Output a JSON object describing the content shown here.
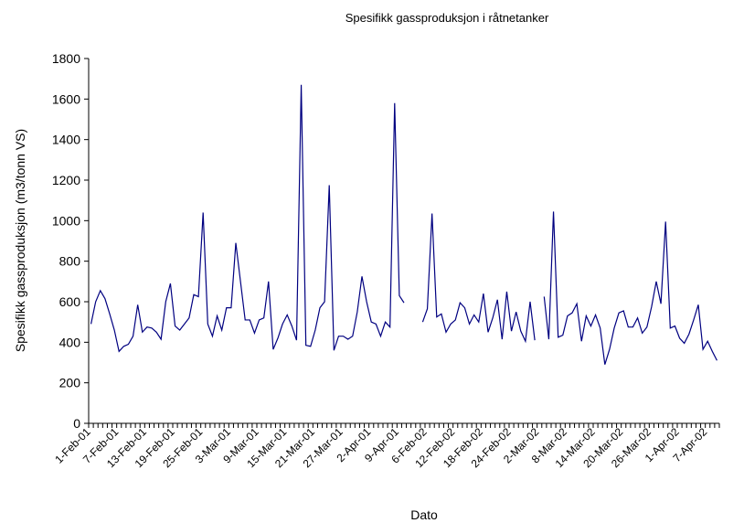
{
  "chart_data": {
    "type": "line",
    "title": "Spesifikk gassproduksjon i råtnetanker",
    "x_label": "Dato",
    "y_label": "Spesifikk gassproduksjon (m3/tonn VS)",
    "categories": [
      "1-Feb-01",
      null,
      null,
      null,
      null,
      null,
      "7-Feb-01",
      null,
      null,
      null,
      null,
      null,
      "13-Feb-01",
      null,
      null,
      null,
      null,
      null,
      "19-Feb-01",
      null,
      null,
      null,
      null,
      null,
      "25-Feb-01",
      null,
      null,
      null,
      null,
      null,
      "3-Mar-01",
      null,
      null,
      null,
      null,
      null,
      "9-Mar-01",
      null,
      null,
      null,
      null,
      null,
      "15-Mar-01",
      null,
      null,
      null,
      null,
      null,
      "21-Mar-01",
      null,
      null,
      null,
      null,
      null,
      "27-Mar-01",
      null,
      null,
      null,
      null,
      null,
      "2-Apr-01",
      null,
      null,
      null,
      null,
      null,
      "9-Apr-01",
      null,
      null,
      null,
      null,
      null,
      "6-Feb-02",
      null,
      null,
      null,
      null,
      null,
      "12-Feb-02",
      null,
      null,
      null,
      null,
      null,
      "18-Feb-02",
      null,
      null,
      null,
      null,
      null,
      "24-Feb-02",
      null,
      null,
      null,
      null,
      null,
      "2-Mar-02",
      null,
      null,
      null,
      null,
      null,
      "8-Mar-02",
      null,
      null,
      null,
      null,
      null,
      "14-Mar-02",
      null,
      null,
      null,
      null,
      null,
      "20-Mar-02",
      null,
      null,
      null,
      null,
      null,
      "26-Mar-02",
      null,
      null,
      null,
      null,
      null,
      "1-Apr-02",
      null,
      null,
      null,
      null,
      null,
      "7-Apr-02",
      null,
      null
    ],
    "values": [
      490,
      600,
      655,
      615,
      540,
      460,
      355,
      380,
      390,
      430,
      585,
      450,
      475,
      470,
      450,
      415,
      600,
      690,
      480,
      460,
      490,
      520,
      635,
      625,
      1040,
      490,
      430,
      530,
      460,
      570,
      570,
      890,
      700,
      510,
      510,
      445,
      510,
      520,
      700,
      365,
      420,
      490,
      535,
      480,
      410,
      1670,
      385,
      380,
      460,
      570,
      600,
      1175,
      360,
      430,
      430,
      415,
      430,
      550,
      725,
      600,
      500,
      490,
      430,
      500,
      475,
      1580,
      630,
      595,
      null,
      null,
      null,
      500,
      565,
      1035,
      525,
      540,
      450,
      490,
      510,
      595,
      570,
      490,
      535,
      500,
      640,
      450,
      520,
      610,
      415,
      650,
      455,
      550,
      455,
      405,
      600,
      410,
      null,
      625,
      415,
      1045,
      425,
      435,
      530,
      545,
      590,
      405,
      530,
      480,
      535,
      470,
      290,
      365,
      470,
      545,
      555,
      475,
      475,
      520,
      445,
      475,
      575,
      700,
      590,
      995,
      470,
      480,
      420,
      395,
      440,
      510,
      585,
      365,
      405,
      355,
      310
    ],
    "color": "#000080",
    "ylim": [
      0,
      1800
    ],
    "yticks": [
      0,
      200,
      400,
      600,
      800,
      1000,
      1200,
      1400,
      1600,
      1800
    ],
    "grid": false
  }
}
